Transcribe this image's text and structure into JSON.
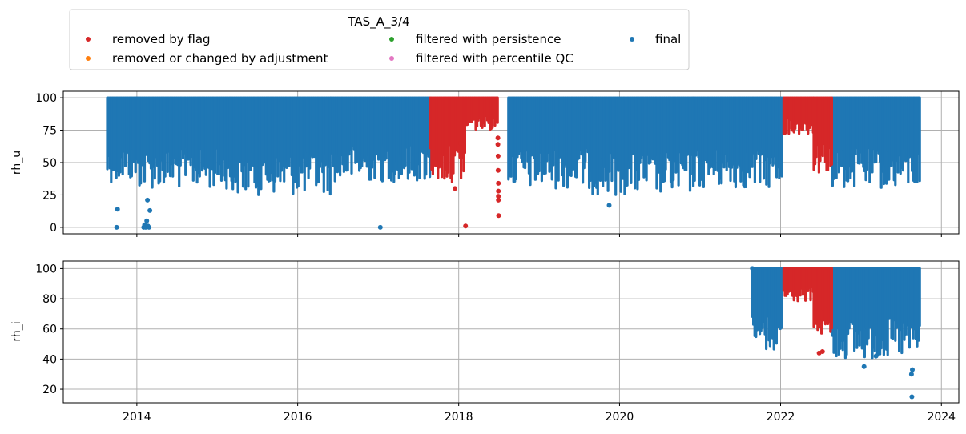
{
  "chart_data": {
    "type": "scatter",
    "legend": {
      "title": "TAS_A_3/4",
      "placement": "top-left, above plots",
      "entries": [
        {
          "label": "removed by flag",
          "color": "#d62728"
        },
        {
          "label": "removed or changed by adjustment",
          "color": "#ff7f0e"
        },
        {
          "label": "filtered with persistence",
          "color": "#2ca02c"
        },
        {
          "label": "filtered with percentile QC",
          "color": "#e377c2"
        },
        {
          "label": "final",
          "color": "#1f77b4"
        }
      ]
    },
    "x_axis": {
      "type": "date",
      "range": [
        "2013-02-01",
        "2024-03-20"
      ],
      "ticks": [
        "2014",
        "2016",
        "2018",
        "2020",
        "2022",
        "2024"
      ],
      "grid": true
    },
    "subplots": [
      {
        "ylabel": "rh_u",
        "ylim": [
          -5,
          105
        ],
        "yticks": [
          "0",
          "25",
          "50",
          "75",
          "100"
        ],
        "grid": true,
        "series": [
          {
            "name": "final",
            "color": "#1f77b4",
            "bands": [
              {
                "start": "2013-08-20",
                "end": "2014-01-01",
                "low": 35,
                "high": 100
              },
              {
                "start": "2014-01-01",
                "end": "2015-03-01",
                "low": 30,
                "high": 100
              },
              {
                "start": "2015-03-01",
                "end": "2016-06-01",
                "low": 25,
                "high": 100
              },
              {
                "start": "2016-06-01",
                "end": "2017-08-25",
                "low": 35,
                "high": 100
              },
              {
                "start": "2018-08-15",
                "end": "2019-09-01",
                "low": 30,
                "high": 100
              },
              {
                "start": "2019-09-01",
                "end": "2020-12-01",
                "low": 25,
                "high": 100
              },
              {
                "start": "2020-12-01",
                "end": "2022-01-10",
                "low": 30,
                "high": 100
              },
              {
                "start": "2022-08-25",
                "end": "2023-09-30",
                "low": 30,
                "high": 100
              }
            ],
            "points": [
              {
                "x": "2013-10-01",
                "y": 0
              },
              {
                "x": "2013-10-05",
                "y": 14
              },
              {
                "x": "2014-02-01",
                "y": 0
              },
              {
                "x": "2014-02-05",
                "y": 2
              },
              {
                "x": "2014-02-10",
                "y": 0
              },
              {
                "x": "2014-02-15",
                "y": 5
              },
              {
                "x": "2014-02-20",
                "y": 1
              },
              {
                "x": "2014-02-25",
                "y": 0
              },
              {
                "x": "2014-03-01",
                "y": 13
              },
              {
                "x": "2014-02-18",
                "y": 21
              },
              {
                "x": "2017-01-10",
                "y": 0
              },
              {
                "x": "2019-11-15",
                "y": 17
              }
            ]
          },
          {
            "name": "removed by flag",
            "color": "#d62728",
            "bands": [
              {
                "start": "2017-08-25",
                "end": "2018-02-01",
                "low": 35,
                "high": 100
              },
              {
                "start": "2018-02-01",
                "end": "2018-07-01",
                "low": 75,
                "high": 100
              },
              {
                "start": "2022-01-15",
                "end": "2022-06-01",
                "low": 72,
                "high": 100
              },
              {
                "start": "2022-06-01",
                "end": "2022-08-25",
                "low": 42,
                "high": 100
              }
            ],
            "points": [
              {
                "x": "2017-12-15",
                "y": 30
              },
              {
                "x": "2018-02-01",
                "y": 1
              },
              {
                "x": "2018-01-10",
                "y": 65
              },
              {
                "x": "2018-06-28",
                "y": 69
              },
              {
                "x": "2018-06-28",
                "y": 64
              },
              {
                "x": "2018-06-29",
                "y": 55
              },
              {
                "x": "2018-06-29",
                "y": 44
              },
              {
                "x": "2018-06-30",
                "y": 34
              },
              {
                "x": "2018-06-30",
                "y": 28
              },
              {
                "x": "2018-06-30",
                "y": 24
              },
              {
                "x": "2018-06-30",
                "y": 21
              },
              {
                "x": "2018-07-01",
                "y": 9
              }
            ]
          }
        ]
      },
      {
        "ylabel": "rh_i",
        "ylim": [
          11,
          105
        ],
        "yticks": [
          "20",
          "40",
          "60",
          "80",
          "100"
        ],
        "grid": true,
        "series": [
          {
            "name": "final",
            "color": "#1f77b4",
            "bands": [
              {
                "start": "2021-08-25",
                "end": "2022-01-10",
                "low": 45,
                "high": 100
              },
              {
                "start": "2022-08-25",
                "end": "2023-09-30",
                "low": 40,
                "high": 100
              }
            ],
            "points": [
              {
                "x": "2021-08-26",
                "y": 100
              },
              {
                "x": "2023-01-15",
                "y": 35
              },
              {
                "x": "2023-08-20",
                "y": 15
              },
              {
                "x": "2023-08-18",
                "y": 30
              },
              {
                "x": "2023-08-22",
                "y": 33
              },
              {
                "x": "2023-03-10",
                "y": 42
              }
            ]
          },
          {
            "name": "removed by flag",
            "color": "#d62728",
            "bands": [
              {
                "start": "2022-01-15",
                "end": "2022-06-01",
                "low": 78,
                "high": 100
              },
              {
                "start": "2022-06-01",
                "end": "2022-08-25",
                "low": 55,
                "high": 100
              }
            ],
            "points": [
              {
                "x": "2022-06-25",
                "y": 44
              },
              {
                "x": "2022-07-10",
                "y": 45
              }
            ]
          }
        ]
      }
    ]
  }
}
